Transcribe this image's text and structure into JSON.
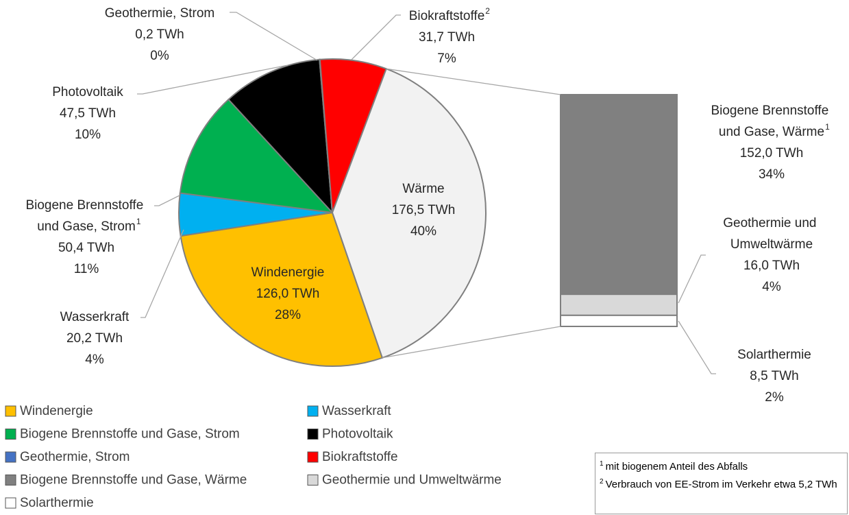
{
  "chart_data": {
    "type": "pie",
    "slices": [
      {
        "name": "Windenergie",
        "value": 126.0,
        "value_label": "126,0 TWh",
        "percent_label": "28%",
        "color": "#FFC000"
      },
      {
        "name": "Wasserkraft",
        "value": 20.2,
        "value_label": "20,2 TWh",
        "percent_label": "4%",
        "color": "#00B0F0"
      },
      {
        "name": "Biogene Brennstoffe und Gase, Strom",
        "note": "1",
        "value": 50.4,
        "value_label": "50,4 TWh",
        "percent_label": "11%",
        "color": "#00B050"
      },
      {
        "name": "Photovoltaik",
        "value": 47.5,
        "value_label": "47,5 TWh",
        "percent_label": "10%",
        "color": "#000000"
      },
      {
        "name": "Geothermie, Strom",
        "value": 0.2,
        "value_label": "0,2 TWh",
        "percent_label": "0%",
        "color": "#4472C4"
      },
      {
        "name": "Biokraftstoffe",
        "note": "2",
        "value": 31.7,
        "value_label": "31,7 TWh",
        "percent_label": "7%",
        "color": "#FF0000"
      }
    ],
    "bar": {
      "name": "Wärme",
      "value": 176.5,
      "value_label": "176,5 TWh",
      "percent_label": "40%",
      "color": "#F2F2F2",
      "segments": [
        {
          "name": "Biogene Brennstoffe und Gase, Wärme",
          "note": "1",
          "value": 152.0,
          "value_label": "152,0 TWh",
          "percent_label": "34%",
          "color": "#808080"
        },
        {
          "name": "Geothermie und Umweltwärme",
          "value": 16.0,
          "value_label": "16,0 TWh",
          "percent_label": "4%",
          "color": "#D9D9D9"
        },
        {
          "name": "Solarthermie",
          "value": 8.5,
          "value_label": "8,5 TWh",
          "percent_label": "2%",
          "color": "#FFFFFF"
        }
      ]
    },
    "footnotes": [
      {
        "mark": "1",
        "text": "mit biogenem Anteil des Abfalls"
      },
      {
        "mark": "2",
        "text": "Verbrauch von EE-Strom im Verkehr etwa 5,2 TWh"
      }
    ]
  }
}
